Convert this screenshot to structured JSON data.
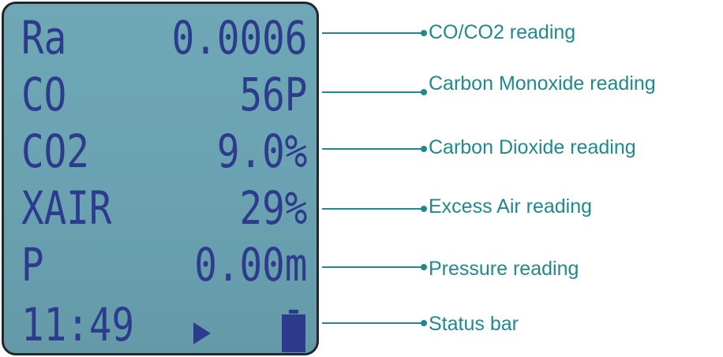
{
  "display": {
    "rows": [
      {
        "label": "Ra",
        "value": "0.0006"
      },
      {
        "label": "CO",
        "value": "56P"
      },
      {
        "label": "CO2",
        "value": "9.0%"
      },
      {
        "label": "XAIR",
        "value": "29%"
      },
      {
        "label": "P",
        "value": "0.00m"
      }
    ],
    "status": {
      "time": "11:49",
      "play_icon": "play-icon",
      "battery_icon": "battery-icon"
    }
  },
  "callouts": [
    {
      "label": "CO/CO2 reading"
    },
    {
      "label": "Carbon Monoxide reading"
    },
    {
      "label": "Carbon Dioxide reading"
    },
    {
      "label": "Excess Air reading"
    },
    {
      "label": "Pressure reading"
    },
    {
      "label": "Status bar"
    }
  ],
  "colors": {
    "lcd_background": "#6ea7b6",
    "lcd_text": "#2d3b8c",
    "callout": "#1e8a8e",
    "bezel": "#242628"
  }
}
